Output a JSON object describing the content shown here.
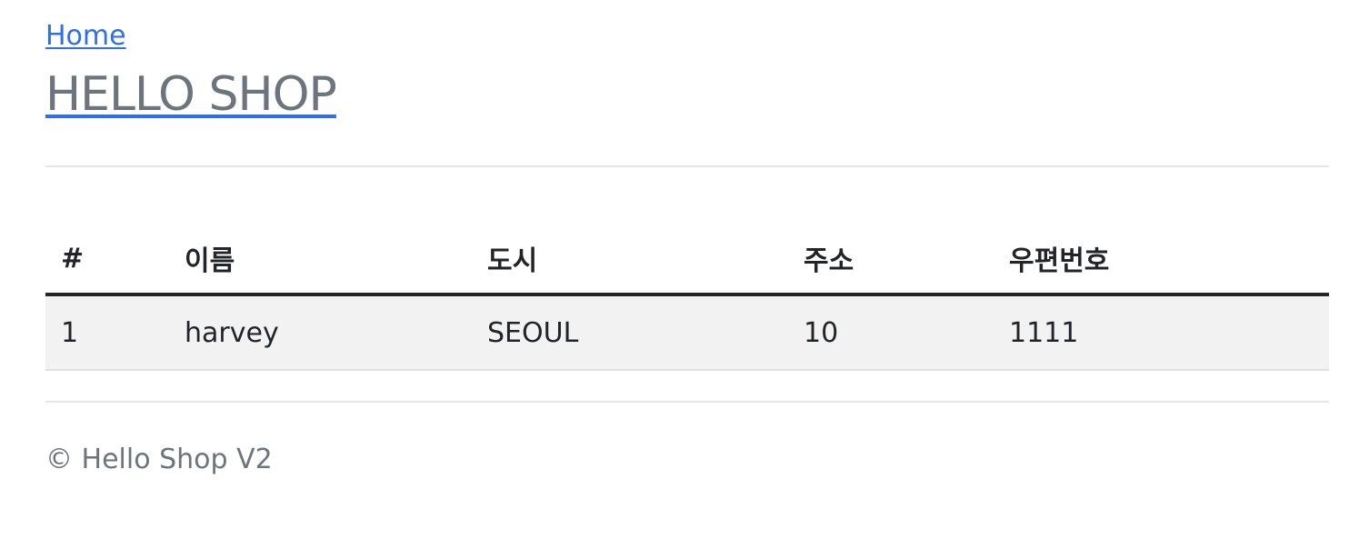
{
  "header": {
    "home_link": "Home",
    "brand": "HELLO SHOP"
  },
  "table": {
    "columns": [
      "#",
      "이름",
      "도시",
      "주소",
      "우편번호"
    ],
    "rows": [
      [
        "1",
        "harvey",
        "SEOUL",
        "10",
        "1111"
      ]
    ]
  },
  "footer": {
    "text": "© Hello Shop V2"
  },
  "colors": {
    "link": "#2f6fe8",
    "brand_text": "#6c757d",
    "row_background": "#f2f2f2",
    "text": "#212529"
  }
}
